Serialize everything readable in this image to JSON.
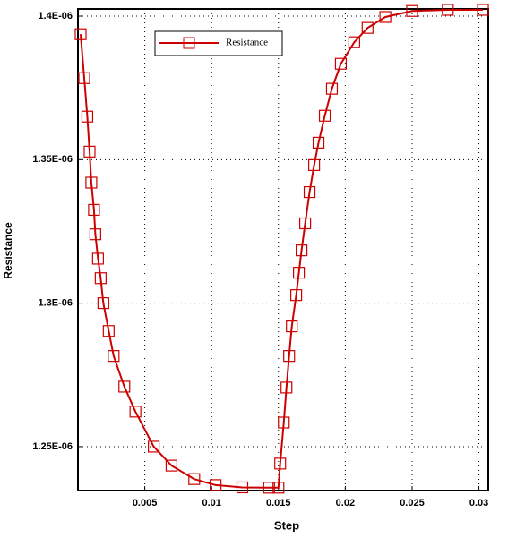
{
  "chart_data": {
    "type": "line",
    "xlabel": "Step",
    "ylabel": "Resistance",
    "x": [
      0.0002,
      0.00047,
      0.0007,
      0.00087,
      0.001,
      0.0012,
      0.0013,
      0.0015,
      0.0017,
      0.0019,
      0.0023,
      0.00267,
      0.00347,
      0.0043,
      0.00567,
      0.007,
      0.0087,
      0.0103,
      0.0123,
      0.0143,
      0.015,
      0.01513,
      0.0154,
      0.0156,
      0.0158,
      0.016,
      0.01633,
      0.01653,
      0.01673,
      0.017,
      0.01733,
      0.01767,
      0.018,
      0.01847,
      0.019,
      0.01967,
      0.02067,
      0.02167,
      0.023,
      0.025,
      0.02767,
      0.0303
    ],
    "series": [
      {
        "name": "Resistance",
        "color": "#cc0000",
        "marker": "square",
        "values": [
          1.3937e-06,
          1.3784e-06,
          1.365e-06,
          1.3528e-06,
          1.342e-06,
          1.3325e-06,
          1.324e-06,
          1.3155e-06,
          1.3087e-06,
          1.3e-06,
          1.2903e-06,
          1.2816e-06,
          1.2709e-06,
          1.2622e-06,
          1.25e-06,
          1.2434e-06,
          1.2387e-06,
          1.2366e-06,
          1.2358e-06,
          1.2357e-06,
          1.2357e-06,
          1.2441e-06,
          1.2584e-06,
          1.2706e-06,
          1.2816e-06,
          1.2919e-06,
          1.3028e-06,
          1.3106e-06,
          1.3184e-06,
          1.3278e-06,
          1.3387e-06,
          1.3481e-06,
          1.3559e-06,
          1.3653e-06,
          1.3747e-06,
          1.3834e-06,
          1.3909e-06,
          1.3959e-06,
          1.3997e-06,
          1.4018e-06,
          1.4022e-06,
          1.4022e-06
        ]
      }
    ],
    "xlim": [
      0,
      0.0307
    ],
    "xticks": [
      0.005,
      0.01,
      0.015,
      0.02,
      0.025,
      0.03
    ],
    "ylim": [
      1.2347e-06,
      1.4025e-06
    ],
    "yticks": [
      {
        "value": 1.25e-06,
        "label": "1.25E-06"
      },
      {
        "value": 1.3e-06,
        "label": "1.3E-06"
      },
      {
        "value": 1.35e-06,
        "label": "1.35E-06"
      },
      {
        "value": 1.4e-06,
        "label": "1.4E-06"
      }
    ],
    "grid": true,
    "legend": "upper left"
  }
}
